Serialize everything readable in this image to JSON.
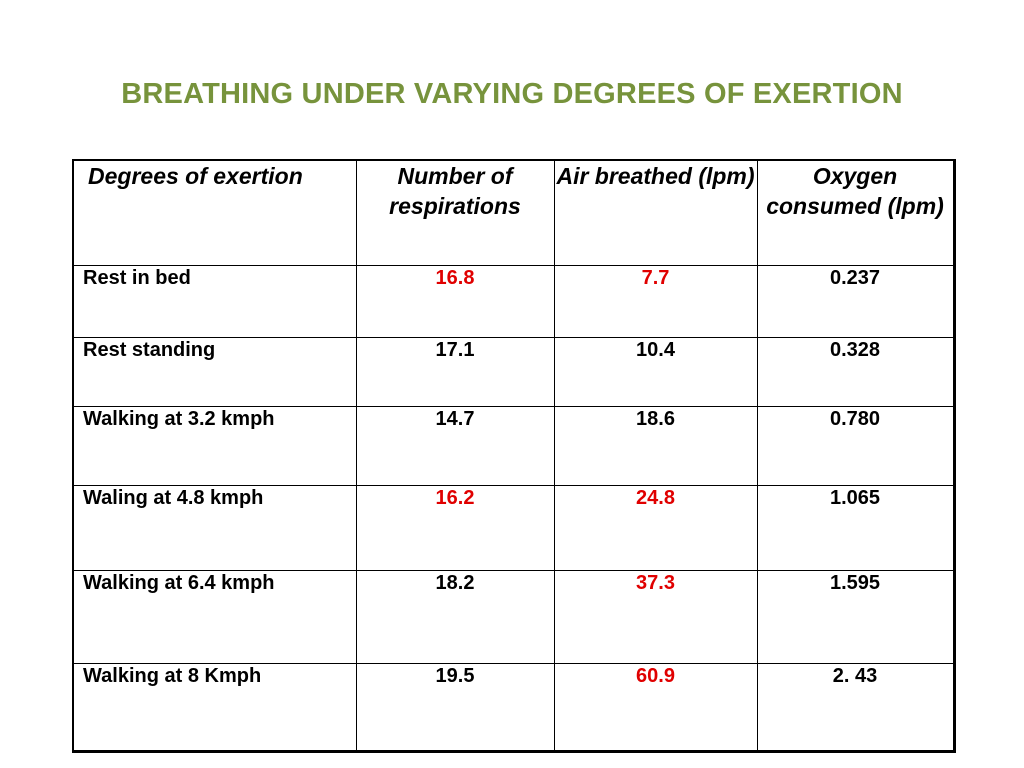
{
  "title": "BREATHING UNDER VARYING DEGREES OF EXERTION",
  "table": {
    "headers": [
      "Degrees of exertion",
      "Number of respirations",
      "Air breathed (lpm)",
      "Oxygen consumed (lpm)"
    ],
    "rows": [
      {
        "label": "Rest in bed",
        "respirations": "16.8",
        "air": "7.7",
        "oxygen": "0.237"
      },
      {
        "label": "Rest standing",
        "respirations": "17.1",
        "air": "10.4",
        "oxygen": "0.328"
      },
      {
        "label": "Walking at 3.2 kmph",
        "respirations": "14.7",
        "air": "18.6",
        "oxygen": "0.780"
      },
      {
        "label": "Waling at 4.8 kmph",
        "respirations": "16.2",
        "air": "24.8",
        "oxygen": "1.065"
      },
      {
        "label": "Walking at 6.4 kmph",
        "respirations": "18.2",
        "air": "37.3",
        "oxygen": "1.595"
      },
      {
        "label": "Walking at 8 Kmph",
        "respirations": "19.5",
        "air": "60.9",
        "oxygen": "2. 43"
      }
    ]
  },
  "colors": {
    "title": "#77933c",
    "highlight": "#e00000",
    "text": "#000000"
  }
}
